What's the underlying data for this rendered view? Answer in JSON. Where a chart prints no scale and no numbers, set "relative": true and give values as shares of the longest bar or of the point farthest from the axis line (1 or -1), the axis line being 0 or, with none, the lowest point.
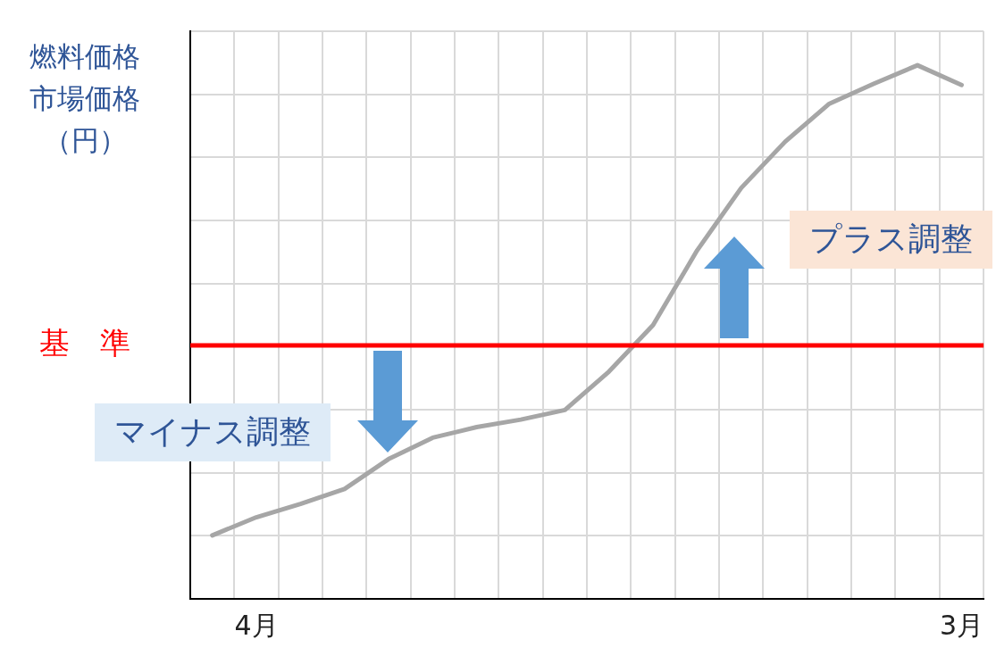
{
  "chart_data": {
    "type": "line",
    "relative": true,
    "ylabel": "燃料価格市場価格（円）",
    "categories": [
      null,
      "4月",
      null,
      null,
      null,
      null,
      null,
      null,
      null,
      null,
      null,
      null,
      null,
      null,
      null,
      null,
      null,
      "3月"
    ],
    "series": [
      {
        "color": "#a6a6a6",
        "values": [
          0.119,
          0.153,
          0.178,
          0.206,
          0.262,
          0.302,
          0.322,
          0.336,
          0.354,
          0.426,
          0.513,
          0.653,
          0.77,
          0.857,
          0.928,
          0.965,
          1,
          0.963
        ]
      }
    ],
    "ref_lines": [
      {
        "axis": "y",
        "value": 0.475,
        "label": "基　準",
        "color": "#ff0000"
      }
    ],
    "annotations": [
      "マイナス調整",
      "プラス調整"
    ],
    "grid": true,
    "tick_labels": "x",
    "marker": "none",
    "line_style": "solid",
    "legend": false
  }
}
